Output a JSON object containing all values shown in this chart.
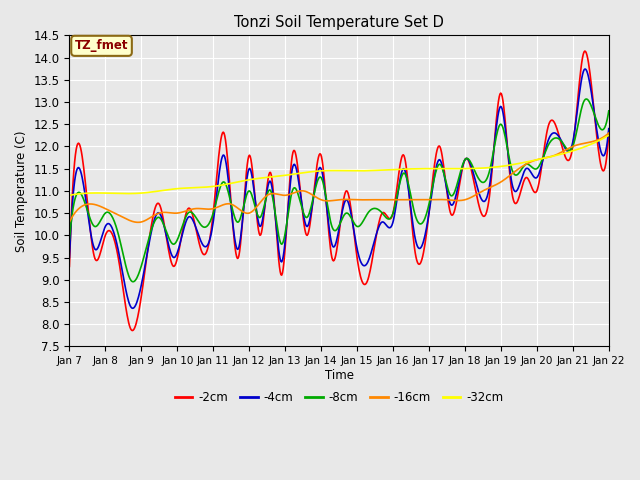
{
  "title": "Tonzi Soil Temperature Set D",
  "xlabel": "Time",
  "ylabel": "Soil Temperature (C)",
  "ylim": [
    7.5,
    14.5
  ],
  "annotation_text": "TZ_fmet",
  "annotation_color": "#8B0000",
  "annotation_bg": "#FFFFCC",
  "colors": {
    "-2cm": "#FF0000",
    "-4cm": "#0000CC",
    "-8cm": "#00AA00",
    "-16cm": "#FF8800",
    "-32cm": "#FFFF00"
  },
  "line_width": 1.2,
  "background_color": "#E8E8E8",
  "grid_color": "#FFFFFF",
  "xtick_labels": [
    "Jan 7",
    "Jan 8",
    "Jan 9",
    "Jan 10",
    "Jan 11",
    "Jan 12",
    "Jan 13",
    "Jan 14",
    "Jan 15",
    "Jan 16",
    "Jan 17",
    "Jan 18",
    "Jan 19",
    "Jan 20",
    "Jan 21",
    "Jan 22"
  ],
  "num_points": 720,
  "figsize": [
    6.4,
    4.8
  ],
  "dpi": 100
}
